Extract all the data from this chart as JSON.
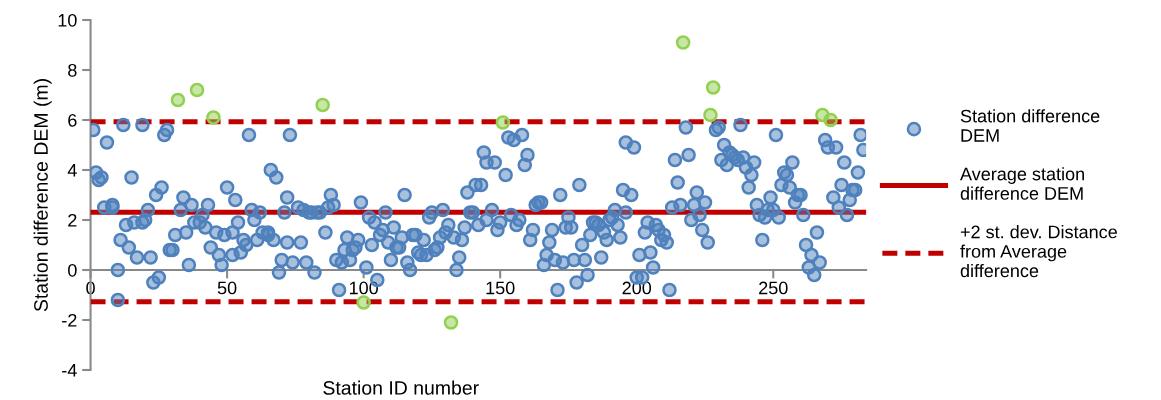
{
  "chart_data": {
    "type": "scatter",
    "xlabel": "Station ID number",
    "ylabel": "Station difference DEM (m)",
    "xlim": [
      0,
      284
    ],
    "xticks": [
      0,
      50,
      100,
      150,
      200,
      250
    ],
    "ylim": [
      -4,
      10
    ],
    "yticks": [
      -4,
      -2,
      0,
      2,
      4,
      6,
      8,
      10
    ],
    "grid": false,
    "legend": "right",
    "marker": "circle",
    "ref_lines": [
      {
        "axis": "y",
        "value": 2.31,
        "label": "Average station\ndifference DEM",
        "color": "#c00000",
        "line_style": "solid"
      },
      {
        "axis": "y",
        "value": 5.93,
        "label": "+2 st. dev. Distance\nfrom Average\ndifference",
        "color": "#c00000",
        "line_style": "dashed"
      },
      {
        "axis": "y",
        "value": -1.27,
        "color": "#c00000",
        "line_style": "dashed"
      }
    ],
    "series": [
      {
        "name": "Station difference\nDEM",
        "color": "#4f81bd",
        "x": [
          1,
          2,
          3,
          4,
          6,
          5,
          8,
          8,
          10,
          10,
          11,
          12,
          14,
          13,
          15,
          16,
          17,
          19,
          20,
          19,
          21,
          22,
          23,
          25,
          24,
          26,
          27,
          28,
          29,
          30,
          31,
          33,
          34,
          35,
          36,
          37,
          38,
          40,
          41,
          42,
          43,
          44,
          46,
          47,
          48,
          49,
          50,
          52,
          52,
          53,
          54,
          55,
          56,
          57,
          58,
          59,
          60,
          61,
          62,
          63,
          65,
          65,
          66,
          67,
          68,
          69,
          70,
          71,
          72,
          72,
          73,
          74,
          76,
          77,
          78,
          79,
          80,
          81,
          82,
          83,
          84,
          86,
          87,
          88,
          89,
          90,
          91,
          92,
          93,
          94,
          95,
          96,
          97,
          98,
          99,
          101,
          102,
          103,
          104,
          105,
          106,
          107,
          108,
          109,
          110,
          111,
          112,
          113,
          114,
          115,
          116,
          117,
          118,
          119,
          120,
          121,
          122,
          123,
          124,
          125,
          126,
          127,
          128,
          129,
          130,
          131,
          133,
          134,
          135,
          136,
          137,
          138,
          139,
          140,
          141,
          142,
          143,
          144,
          145,
          145,
          147,
          148,
          149,
          150,
          152,
          153,
          154,
          155,
          156,
          157,
          158,
          159,
          160,
          161,
          162,
          163,
          164,
          165,
          166,
          167,
          168,
          169,
          170,
          171,
          172,
          173,
          174,
          175,
          176,
          177,
          178,
          179,
          180,
          181,
          182,
          183,
          184,
          185,
          186,
          187,
          188,
          189,
          190,
          191,
          192,
          193,
          194,
          195,
          196,
          196,
          198,
          199,
          200,
          201,
          202,
          203,
          204,
          205,
          206,
          207,
          208,
          209,
          210,
          211,
          212,
          213,
          214,
          215,
          216,
          218,
          219,
          220,
          221,
          222,
          223,
          224,
          225,
          226,
          229,
          230,
          231,
          232,
          233,
          234,
          235,
          236,
          237,
          238,
          239,
          240,
          241,
          242,
          243,
          244,
          245,
          246,
          247,
          248,
          249,
          250,
          251,
          252,
          253,
          254,
          255,
          256,
          257,
          258,
          259,
          260,
          261,
          262,
          263,
          264,
          265,
          266,
          267,
          269,
          270,
          272,
          273,
          274,
          275,
          276,
          277,
          278,
          279,
          280,
          281,
          282,
          283
        ],
        "values": [
          5.6,
          3.9,
          3.6,
          3.7,
          5.1,
          2.5,
          2.5,
          2.6,
          0.0,
          -1.2,
          1.2,
          5.8,
          0.9,
          1.8,
          3.7,
          1.9,
          0.5,
          1.9,
          2.0,
          5.8,
          2.4,
          0.5,
          -0.5,
          -0.3,
          3.0,
          3.3,
          5.4,
          5.6,
          0.8,
          0.8,
          1.4,
          2.4,
          2.9,
          1.5,
          0.2,
          2.6,
          1.9,
          1.9,
          2.2,
          1.7,
          2.6,
          0.9,
          1.5,
          0.6,
          0.2,
          1.4,
          3.3,
          0.6,
          1.5,
          2.8,
          1.9,
          0.7,
          1.2,
          1.0,
          5.4,
          2.4,
          2.0,
          1.2,
          2.3,
          1.5,
          1.4,
          1.5,
          4.0,
          1.2,
          3.7,
          -0.1,
          0.4,
          2.3,
          1.1,
          2.9,
          5.4,
          0.3,
          2.5,
          1.1,
          2.4,
          0.3,
          2.3,
          2.3,
          -0.1,
          2.3,
          2.3,
          1.5,
          2.5,
          3.0,
          2.6,
          0.4,
          -0.8,
          0.3,
          0.8,
          1.3,
          0.4,
          0.8,
          0.9,
          1.2,
          2.7,
          0.1,
          2.1,
          1.0,
          1.9,
          -0.4,
          1.4,
          1.6,
          2.3,
          1.1,
          0.4,
          1.7,
          0.9,
          0.9,
          1.3,
          3.0,
          0.3,
          0.0,
          1.4,
          1.4,
          0.7,
          0.6,
          1.2,
          0.6,
          2.1,
          2.3,
          0.8,
          0.9,
          1.3,
          2.4,
          1.5,
          1.8,
          1.3,
          0.0,
          0.5,
          1.2,
          1.7,
          3.1,
          2.3,
          2.3,
          3.4,
          1.8,
          3.4,
          4.7,
          2.0,
          4.3,
          2.4,
          4.3,
          1.6,
          1.9,
          3.8,
          5.3,
          2.2,
          5.2,
          1.8,
          2.0,
          5.4,
          4.2,
          4.6,
          1.2,
          1.6,
          2.6,
          2.7,
          2.7,
          0.2,
          0.6,
          1.1,
          1.6,
          0.4,
          -0.8,
          3.0,
          0.3,
          1.7,
          2.1,
          1.7,
          0.4,
          -0.5,
          3.4,
          1.0,
          0.4,
          -0.2,
          1.4,
          1.9,
          1.9,
          1.8,
          0.5,
          1.5,
          1.2,
          2.0,
          2.1,
          2.4,
          1.8,
          1.3,
          3.2,
          5.1,
          2.3,
          3.0,
          4.9,
          -0.3,
          0.6,
          -0.3,
          1.5,
          1.9,
          0.7,
          0.1,
          1.8,
          1.6,
          1.2,
          1.4,
          1.1,
          -0.8,
          2.5,
          4.4,
          3.5,
          2.6,
          5.7,
          4.6,
          2.0,
          2.6,
          3.1,
          2.2,
          1.6,
          2.7,
          1.1,
          5.6,
          5.7,
          4.4,
          5.0,
          4.2,
          4.7,
          4.6,
          4.5,
          4.4,
          5.8,
          4.5,
          4.1,
          3.3,
          3.8,
          4.3,
          2.6,
          2.2,
          1.2,
          2.1,
          2.4,
          2.9,
          2.4,
          5.4,
          2.1,
          3.4,
          3.9,
          3.8,
          3.3,
          4.3,
          2.7,
          3.0,
          3.0,
          2.2,
          1.0,
          0.1,
          0.6,
          -0.2,
          1.5,
          0.3,
          5.2,
          4.9,
          2.9,
          4.9,
          2.5,
          3.4,
          4.3,
          2.2,
          2.8,
          3.2,
          3.2,
          3.9,
          5.4,
          4.8
        ]
      },
      {
        "color": "#92d050",
        "x": [
          32,
          39,
          45,
          85,
          100,
          132,
          151,
          217,
          228,
          227,
          268,
          271
        ],
        "values": [
          6.8,
          7.2,
          6.1,
          6.6,
          -1.3,
          -2.1,
          5.9,
          9.1,
          7.3,
          6.2,
          6.2,
          6.0
        ]
      }
    ]
  }
}
